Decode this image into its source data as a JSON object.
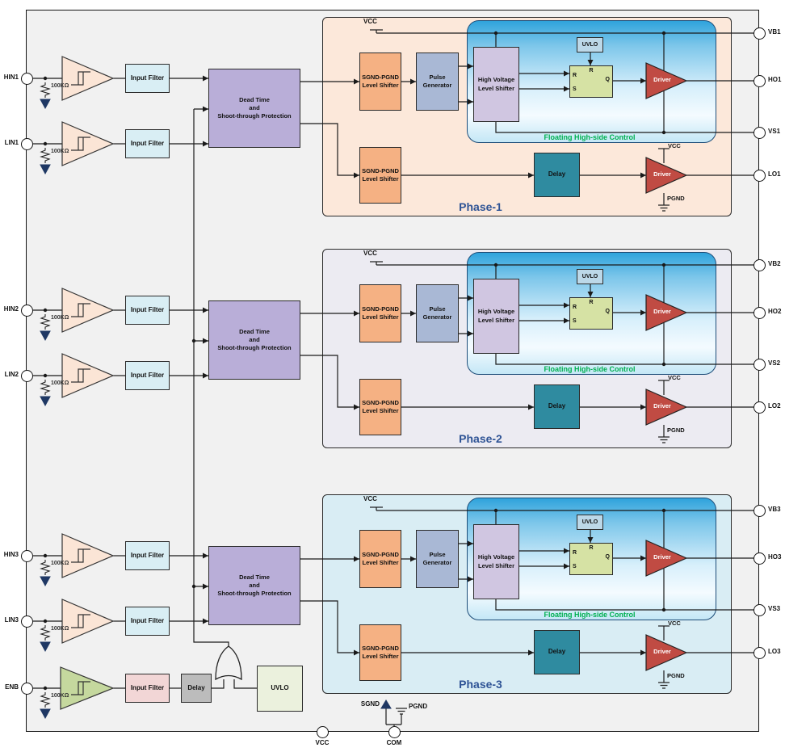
{
  "colors": {
    "chip_bg": "#f1f1f1",
    "phase1_bg": "#fce8da",
    "phase2_bg": "#ecebf2",
    "phase3_bg": "#d9edf4",
    "sgnd_shifter": "#f5b183",
    "pulse_gen": "#a9b8d5",
    "hv_shifter": "#d0c6e1",
    "dead_time": "#b9aed8",
    "latch": "#d6e2a4",
    "uvlo_small": "#bcd8e8",
    "driver": "#c04b43",
    "delay_teal": "#2f8ba0",
    "input_filter_blue": "#d9eef4",
    "input_filter_pink": "#f2d6d6",
    "delay_gray": "#bcbcbc",
    "enb_buffer_green": "#c5d89e",
    "uvlo_big": "#ebf1dd",
    "schmitt_peach": "#fbe5d6",
    "navy": "#1f3864",
    "wire": "#1a1a1a",
    "phase_label": "#2e5395",
    "floating_label_green": "#00b050"
  },
  "shared_blocks": {
    "input_filter": "Input Filter",
    "dead_time": "Dead Time\nand\nShoot-through Protection",
    "sgnd_pgnd_shifter": "SGND-PGND\nLevel Shifter",
    "pulse_generator": "Pulse\nGenerator",
    "hv_level_shifter": "High Voltage\nLevel Shifter",
    "uvlo": "UVLO",
    "driver": "Driver",
    "delay": "Delay",
    "floating_label": "Floating High-side Control",
    "vcc": "VCC",
    "pgnd": "PGND",
    "latch": {
      "r_top": "R",
      "r": "R",
      "s": "S",
      "q": "Q"
    }
  },
  "resistor_label": "100KΩ",
  "phases": [
    {
      "label": "Phase-1",
      "hin": "HIN1",
      "lin": "LIN1",
      "vb": "VB1",
      "ho": "HO1",
      "vs": "VS1",
      "lo": "LO1"
    },
    {
      "label": "Phase-2",
      "hin": "HIN2",
      "lin": "LIN2",
      "vb": "VB2",
      "ho": "HO2",
      "vs": "VS2",
      "lo": "LO2"
    },
    {
      "label": "Phase-3",
      "hin": "HIN3",
      "lin": "LIN3",
      "vb": "VB3",
      "ho": "HO3",
      "vs": "VS3",
      "lo": "LO3"
    }
  ],
  "enable_path": {
    "pin": "ENB"
  },
  "bottom": {
    "vcc_pin": "VCC",
    "com_pin": "COM",
    "sgnd": "SGND",
    "pgnd": "PGND"
  }
}
